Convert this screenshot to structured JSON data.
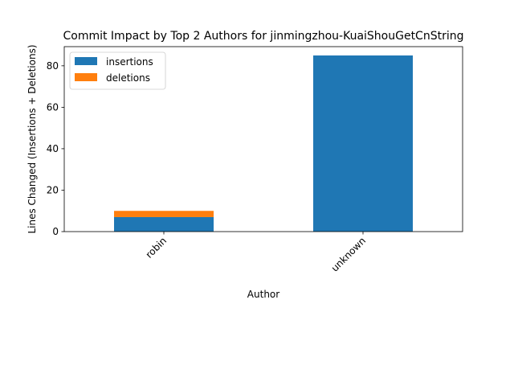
{
  "chart_data": {
    "type": "bar",
    "stacked": true,
    "title": "Commit Impact by Top 2 Authors for jinmingzhou-KuaiShouGetCnString",
    "xlabel": "Author",
    "ylabel": "Lines Changed (Insertions + Deletions)",
    "categories": [
      "robin",
      "unknown"
    ],
    "series": [
      {
        "name": "insertions",
        "values": [
          7,
          85
        ],
        "color": "#1f77b4"
      },
      {
        "name": "deletions",
        "values": [
          3,
          0
        ],
        "color": "#ff7f0e"
      }
    ],
    "ylim": [
      0,
      89.25
    ],
    "yticks": [
      0,
      20,
      40,
      60,
      80
    ],
    "legend_position": "top-left",
    "grid": false
  }
}
